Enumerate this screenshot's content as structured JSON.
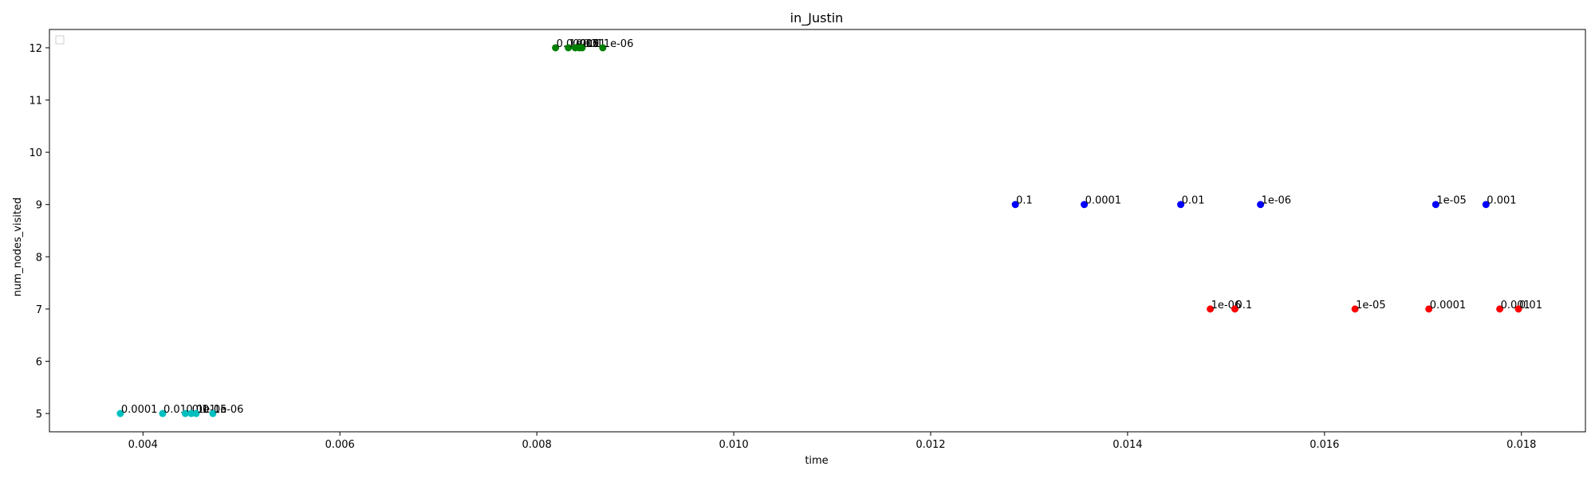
{
  "chart_data": {
    "type": "scatter",
    "title": "in_Justin",
    "xlabel": "time",
    "ylabel": "num_nodes_visited",
    "xlim": [
      0.00305,
      0.01865
    ],
    "ylim": [
      4.65,
      12.35
    ],
    "xticks": [
      0.004,
      0.006,
      0.008,
      0.01,
      0.012,
      0.014,
      0.016,
      0.018
    ],
    "xtick_labels": [
      "0.004",
      "0.006",
      "0.008",
      "0.010",
      "0.012",
      "0.014",
      "0.016",
      "0.018"
    ],
    "yticks": [
      5,
      6,
      7,
      8,
      9,
      10,
      11,
      12
    ],
    "ytick_labels": [
      "5",
      "6",
      "7",
      "8",
      "9",
      "10",
      "11",
      "12"
    ],
    "grid": false,
    "legend": "top-left (empty)",
    "series": [
      {
        "color": "#008000",
        "points": [
          {
            "x": 0.00819,
            "y": 12,
            "label": "0.0001"
          },
          {
            "x": 0.00832,
            "y": 12,
            "label": "1e-05"
          },
          {
            "x": 0.00839,
            "y": 12,
            "label": "0.001"
          },
          {
            "x": 0.00843,
            "y": 12,
            "label": "0.01"
          },
          {
            "x": 0.00846,
            "y": 12,
            "label": "0.1"
          },
          {
            "x": 0.00867,
            "y": 12,
            "label": "1e-06"
          }
        ]
      },
      {
        "color": "#0000ff",
        "points": [
          {
            "x": 0.01286,
            "y": 9,
            "label": "0.1"
          },
          {
            "x": 0.01356,
            "y": 9,
            "label": "0.0001"
          },
          {
            "x": 0.01454,
            "y": 9,
            "label": "0.01"
          },
          {
            "x": 0.01535,
            "y": 9,
            "label": "1e-06"
          },
          {
            "x": 0.01713,
            "y": 9,
            "label": "1e-05"
          },
          {
            "x": 0.01764,
            "y": 9,
            "label": "0.001"
          }
        ]
      },
      {
        "color": "#ff0000",
        "points": [
          {
            "x": 0.01484,
            "y": 7,
            "label": "1e-06"
          },
          {
            "x": 0.01509,
            "y": 7,
            "label": "0.1"
          },
          {
            "x": 0.01631,
            "y": 7,
            "label": "1e-05"
          },
          {
            "x": 0.01706,
            "y": 7,
            "label": "0.0001"
          },
          {
            "x": 0.01778,
            "y": 7,
            "label": "0.001"
          },
          {
            "x": 0.01797,
            "y": 7,
            "label": "0.01"
          }
        ]
      },
      {
        "color": "#00bfbf",
        "points": [
          {
            "x": 0.00377,
            "y": 5,
            "label": "0.0001"
          },
          {
            "x": 0.0042,
            "y": 5,
            "label": "0.01"
          },
          {
            "x": 0.00443,
            "y": 5,
            "label": "0.001"
          },
          {
            "x": 0.00449,
            "y": 5,
            "label": "0.1"
          },
          {
            "x": 0.00454,
            "y": 5,
            "label": "1e-05"
          },
          {
            "x": 0.00471,
            "y": 5,
            "label": "1e-06"
          }
        ]
      }
    ]
  }
}
